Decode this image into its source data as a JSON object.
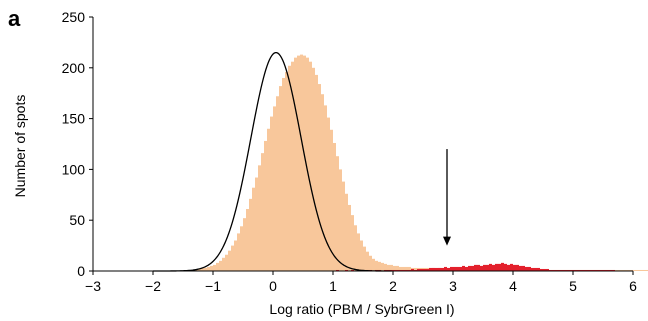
{
  "panel_label": "a",
  "chart_data": {
    "type": "histogram",
    "title": "",
    "xlabel": "Log ratio (PBM / SybrGreen I)",
    "ylabel": "Number of spots",
    "xlim": [
      -3,
      6
    ],
    "ylim": [
      0,
      250
    ],
    "x_ticks": [
      "−3",
      "−2",
      "−1",
      "0",
      "1",
      "2",
      "3",
      "4",
      "5",
      "6"
    ],
    "y_ticks": [
      "0",
      "50",
      "100",
      "150",
      "200",
      "250"
    ],
    "bin_width": 0.05,
    "colors": {
      "all_spots": "#f8c79b",
      "bound_spots": "#e3202c",
      "fit": "#000000",
      "arrow": "#000000"
    },
    "series": [
      {
        "role": "all spots histogram",
        "x_start": -1.3,
        "counts": [
          1,
          2,
          3,
          3,
          4,
          5,
          6,
          8,
          10,
          13,
          16,
          20,
          25,
          30,
          37,
          44,
          52,
          61,
          71,
          82,
          92,
          104,
          116,
          128,
          140,
          152,
          162,
          172,
          182,
          190,
          196,
          202,
          206,
          210,
          212,
          213,
          212,
          210,
          206,
          200,
          193,
          184,
          174,
          163,
          151,
          139,
          126,
          113,
          100,
          88,
          76,
          65,
          55,
          45,
          37,
          30,
          24,
          19,
          15,
          12,
          10,
          9,
          8,
          7,
          6,
          6,
          5,
          5,
          4,
          4,
          4,
          4,
          3,
          3,
          3,
          3,
          3,
          3,
          2,
          3,
          2,
          3,
          2,
          2,
          3,
          2,
          2,
          2,
          2,
          2,
          1,
          2,
          1,
          2,
          1,
          1,
          2,
          1,
          1,
          1,
          1,
          1,
          1,
          1,
          1,
          1,
          1,
          1,
          1,
          1,
          1,
          1,
          1,
          1,
          1,
          1,
          1,
          1,
          1,
          1,
          1,
          1,
          1,
          1,
          1,
          1,
          1,
          1,
          1,
          1,
          1,
          1,
          1,
          1,
          1,
          1,
          1,
          1,
          1,
          1,
          1,
          1,
          1,
          1,
          1,
          1,
          1,
          1,
          1,
          1,
          1,
          1,
          1,
          1,
          1,
          1,
          1,
          1,
          1,
          1,
          1,
          1,
          1,
          1,
          1,
          1,
          1,
          1,
          1,
          1,
          1,
          1,
          1,
          1,
          1,
          1,
          1,
          1,
          1,
          1,
          1,
          1,
          1,
          1,
          1,
          1,
          1
        ]
      },
      {
        "role": "high log ratio spots histogram",
        "x_start": 1.0,
        "counts": [
          0,
          1,
          0,
          0,
          1,
          0,
          1,
          0,
          0,
          1,
          0,
          1,
          1,
          0,
          1,
          1,
          0,
          1,
          1,
          1,
          1,
          1,
          1,
          1,
          1,
          1,
          2,
          1,
          2,
          2,
          2,
          2,
          3,
          3,
          3,
          3,
          3,
          4,
          3,
          4,
          4,
          4,
          4,
          5,
          4,
          5,
          5,
          6,
          6,
          5,
          6,
          6,
          7,
          6,
          7,
          7,
          8,
          7,
          6,
          7,
          6,
          6,
          5,
          5,
          4,
          4,
          3,
          3,
          3,
          2,
          2,
          2,
          1,
          1,
          1,
          1,
          1,
          1,
          1,
          1,
          1,
          1,
          1,
          1,
          1,
          1,
          1,
          1,
          1,
          1,
          1,
          1,
          1,
          1
        ]
      }
    ],
    "fit_curve": {
      "type": "gaussian",
      "mean": 0.05,
      "sd": 0.42,
      "peak": 215
    },
    "annotation": {
      "type": "arrow",
      "x": 2.9,
      "y_top": 120,
      "y_bottom": 25
    }
  }
}
